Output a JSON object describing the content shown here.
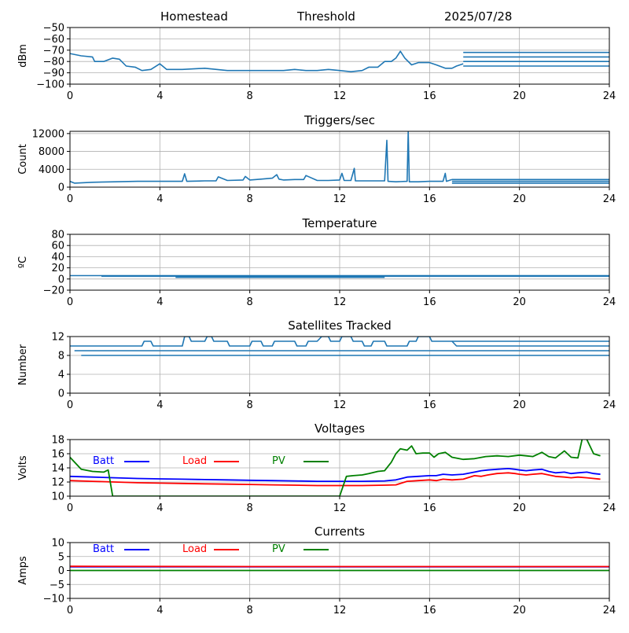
{
  "header": {
    "station": "Homestead",
    "mode": "Threshold",
    "date": "2025/07/28"
  },
  "colors": {
    "series": "#1f77b4",
    "batt": "#0000ff",
    "load": "#ff0000",
    "pv": "#008000",
    "grid": "#b0b0b0"
  },
  "chart_data": [
    {
      "type": "line",
      "title": "",
      "ylabel": "dBm",
      "xlim": [
        0,
        24
      ],
      "ylim": [
        -100,
        -50
      ],
      "xticks": [
        0,
        4,
        8,
        12,
        16,
        20,
        24
      ],
      "yticks": [
        -100,
        -90,
        -80,
        -70,
        -60,
        -50
      ],
      "grid": true,
      "series": [
        {
          "x": [
            0,
            0.5,
            1,
            1.1,
            1.5,
            1.9,
            2.2,
            2.5,
            2.9,
            3.2,
            3.6,
            4,
            4.3,
            5,
            6,
            7,
            8,
            8.5,
            9,
            9.5,
            10,
            10.5,
            11,
            11.5,
            12,
            12.5,
            13,
            13.3,
            13.7,
            14,
            14.3,
            14.5,
            14.7,
            14.9,
            15.2,
            15.5,
            16,
            16.3,
            16.7,
            17,
            17.2,
            17.5
          ],
          "y": [
            -73,
            -75,
            -76,
            -80,
            -80,
            -77,
            -78,
            -84,
            -85,
            -88,
            -87,
            -82,
            -87,
            -87,
            -86,
            -88,
            -88,
            -88,
            -88,
            -88,
            -87,
            -88,
            -88,
            -87,
            -88,
            -89,
            -88,
            -85,
            -85,
            -80,
            -80,
            -77,
            -71,
            -77,
            -83,
            -81,
            -81,
            -83,
            -86,
            -86,
            -84,
            -82
          ]
        },
        {
          "x": [
            17.5,
            24
          ],
          "y": [
            -72,
            -72
          ]
        },
        {
          "x": [
            17.5,
            24
          ],
          "y": [
            -76,
            -76
          ]
        },
        {
          "x": [
            17.5,
            24
          ],
          "y": [
            -80,
            -80
          ]
        },
        {
          "x": [
            17.5,
            24
          ],
          "y": [
            -84,
            -84
          ]
        }
      ]
    },
    {
      "type": "line",
      "title": "Triggers/sec",
      "ylabel": "Count",
      "xlim": [
        0,
        24
      ],
      "ylim": [
        0,
        12500
      ],
      "xticks": [
        0,
        4,
        8,
        12,
        16,
        20,
        24
      ],
      "yticks": [
        0,
        4000,
        8000,
        12000
      ],
      "grid": true,
      "series": [
        {
          "x": [
            0,
            0.2,
            1,
            2,
            3,
            4,
            5,
            5.1,
            5.2,
            6,
            6.5,
            6.6,
            7,
            7.7,
            7.8,
            8,
            8.5,
            9,
            9.2,
            9.3,
            9.5,
            10,
            10.4,
            10.5,
            11,
            11.5,
            12,
            12.1,
            12.2,
            12.5,
            12.65,
            12.7,
            13,
            13.5,
            14,
            14.1,
            14.15,
            14.5,
            15,
            15.05,
            15.1,
            15.5,
            16,
            16.6,
            16.7,
            16.75,
            17
          ],
          "y": [
            1300,
            900,
            1100,
            1200,
            1300,
            1300,
            1300,
            3000,
            1300,
            1400,
            1400,
            2300,
            1500,
            1600,
            2400,
            1600,
            1800,
            2000,
            2800,
            1800,
            1600,
            1700,
            1700,
            2600,
            1500,
            1500,
            1600,
            3100,
            1500,
            1500,
            4200,
            1400,
            1400,
            1400,
            1400,
            10500,
            1300,
            1200,
            1300,
            12600,
            1200,
            1200,
            1300,
            1300,
            3100,
            1300,
            1700
          ]
        },
        {
          "x": [
            17,
            24
          ],
          "y": [
            1700,
            1700
          ]
        },
        {
          "x": [
            17,
            24
          ],
          "y": [
            1300,
            1300
          ]
        },
        {
          "x": [
            17,
            24
          ],
          "y": [
            900,
            900
          ]
        }
      ]
    },
    {
      "type": "line",
      "title": "Temperature",
      "ylabel": "ºC",
      "xlim": [
        0,
        24
      ],
      "ylim": [
        -20,
        80
      ],
      "xticks": [
        0,
        4,
        8,
        12,
        16,
        20,
        24
      ],
      "yticks": [
        -20,
        0,
        20,
        40,
        60,
        80
      ],
      "grid": true,
      "series": [
        {
          "x": [
            0,
            24
          ],
          "y": [
            6,
            6
          ]
        },
        {
          "x": [
            1.4,
            24
          ],
          "y": [
            5,
            5
          ]
        },
        {
          "x": [
            4.7,
            14
          ],
          "y": [
            3,
            3
          ]
        }
      ]
    },
    {
      "type": "line",
      "title": "Satellites Tracked",
      "ylabel": "Number",
      "xlim": [
        0,
        24
      ],
      "ylim": [
        0,
        12
      ],
      "xticks": [
        0,
        4,
        8,
        12,
        16,
        20,
        24
      ],
      "yticks": [
        0,
        4,
        8,
        12
      ],
      "grid": true,
      "series": [
        {
          "x": [
            0,
            3.2,
            3.3,
            3.6,
            3.7,
            5,
            5.1,
            5.3,
            5.4,
            6,
            6.1,
            6.3,
            6.4,
            7,
            7.1,
            8,
            8.1,
            8.5,
            8.6,
            9,
            9.1,
            10,
            10.1,
            10.5,
            10.6,
            11,
            11.2,
            11.5,
            11.6,
            12,
            12.1,
            12.5,
            12.6,
            13,
            13.1,
            13.4,
            13.5,
            14,
            14.1,
            15,
            15.1,
            15.4,
            15.5,
            16,
            16.1,
            17,
            17.2,
            24
          ],
          "y": [
            10,
            10,
            11,
            11,
            10,
            10,
            12,
            12,
            11,
            11,
            12,
            12,
            11,
            11,
            10,
            10,
            11,
            11,
            10,
            10,
            11,
            11,
            10,
            10,
            11,
            11,
            12,
            12,
            11,
            11,
            12,
            12,
            11,
            11,
            10,
            10,
            11,
            11,
            10,
            10,
            11,
            11,
            12,
            12,
            11,
            11,
            10,
            10
          ]
        },
        {
          "x": [
            0.2,
            24
          ],
          "y": [
            9,
            9
          ]
        },
        {
          "x": [
            0.5,
            24
          ],
          "y": [
            8,
            8
          ]
        },
        {
          "x": [
            17,
            24
          ],
          "y": [
            11,
            11
          ]
        }
      ]
    },
    {
      "type": "line",
      "title": "Voltages",
      "ylabel": "Volts",
      "xlim": [
        0,
        24
      ],
      "ylim": [
        10,
        18
      ],
      "xticks": [
        0,
        4,
        8,
        12,
        16,
        20,
        24
      ],
      "yticks": [
        10,
        12,
        14,
        16,
        18
      ],
      "grid": true,
      "legend": "top-left",
      "series": [
        {
          "name": "Batt",
          "color": "#0000ff",
          "x": [
            0,
            1,
            2,
            3,
            4,
            5,
            6,
            7,
            8,
            9,
            10,
            11,
            12,
            13,
            14,
            14.5,
            15,
            15.5,
            16,
            16.3,
            16.6,
            17,
            17.5,
            18,
            18.3,
            18.6,
            19,
            19.5,
            19.8,
            20,
            20.3,
            20.6,
            21,
            21.3,
            21.6,
            22,
            22.3,
            22.6,
            23,
            23.3,
            23.6
          ],
          "y": [
            12.8,
            12.7,
            12.6,
            12.5,
            12.45,
            12.4,
            12.35,
            12.3,
            12.25,
            12.2,
            12.15,
            12.1,
            12.1,
            12.1,
            12.15,
            12.3,
            12.7,
            12.8,
            12.9,
            12.9,
            13.1,
            13.0,
            13.1,
            13.4,
            13.6,
            13.7,
            13.8,
            13.9,
            13.8,
            13.7,
            13.6,
            13.7,
            13.8,
            13.5,
            13.3,
            13.4,
            13.2,
            13.3,
            13.4,
            13.2,
            13.1
          ]
        },
        {
          "name": "Load",
          "color": "#ff0000",
          "x": [
            0,
            1,
            2,
            3,
            4,
            5,
            6,
            7,
            8,
            9,
            10,
            11,
            12,
            13,
            14,
            14.5,
            15,
            15.5,
            16,
            16.3,
            16.6,
            17,
            17.5,
            18,
            18.3,
            18.6,
            19,
            19.5,
            19.8,
            20,
            20.3,
            20.6,
            21,
            21.3,
            21.6,
            22,
            22.3,
            22.6,
            23,
            23.3,
            23.6
          ],
          "y": [
            12.2,
            12.1,
            12.0,
            11.9,
            11.85,
            11.8,
            11.75,
            11.7,
            11.65,
            11.6,
            11.55,
            11.5,
            11.5,
            11.5,
            11.55,
            11.6,
            12.1,
            12.2,
            12.3,
            12.2,
            12.4,
            12.3,
            12.4,
            12.9,
            12.8,
            13.0,
            13.2,
            13.3,
            13.2,
            13.1,
            13.0,
            13.1,
            13.2,
            13.0,
            12.8,
            12.7,
            12.6,
            12.7,
            12.6,
            12.5,
            12.4
          ]
        },
        {
          "name": "PV",
          "color": "#008000",
          "x": [
            0,
            0.5,
            1,
            1.5,
            1.7,
            1.9,
            12,
            12.3,
            12.6,
            13,
            13.3,
            13.7,
            14,
            14.3,
            14.5,
            14.7,
            15,
            15.2,
            15.4,
            15.7,
            16,
            16.2,
            16.4,
            16.7,
            17,
            17.5,
            18,
            18.5,
            19,
            19.5,
            20,
            20.3,
            20.6,
            21,
            21.3,
            21.6,
            22,
            22.3,
            22.6,
            22.8,
            23,
            23.3,
            23.6
          ],
          "y": [
            15.5,
            13.8,
            13.5,
            13.4,
            13.7,
            10,
            10,
            12.8,
            12.9,
            13.0,
            13.2,
            13.5,
            13.6,
            14.8,
            16.0,
            16.7,
            16.5,
            17.1,
            16.0,
            16.1,
            16.1,
            15.5,
            16.0,
            16.2,
            15.5,
            15.2,
            15.3,
            15.6,
            15.7,
            15.6,
            15.8,
            15.7,
            15.6,
            16.2,
            15.6,
            15.4,
            16.4,
            15.5,
            15.4,
            18.2,
            18.0,
            16.0,
            15.7
          ]
        }
      ]
    },
    {
      "type": "line",
      "title": "Currents",
      "ylabel": "Amps",
      "xlim": [
        0,
        24
      ],
      "ylim": [
        -10,
        10
      ],
      "xticks": [
        0,
        4,
        8,
        12,
        16,
        20,
        24
      ],
      "yticks": [
        -10,
        -5,
        0,
        5,
        10
      ],
      "grid": true,
      "legend": "top-left",
      "series": [
        {
          "name": "Batt",
          "color": "#0000ff",
          "x": [
            0,
            24
          ],
          "y": [
            1.3,
            1.3
          ]
        },
        {
          "name": "Load",
          "color": "#ff0000",
          "x": [
            0,
            8,
            16,
            24
          ],
          "y": [
            1.5,
            1.4,
            1.4,
            1.4
          ]
        },
        {
          "name": "PV",
          "color": "#008000",
          "x": [
            0,
            24
          ],
          "y": [
            0,
            0
          ]
        }
      ]
    }
  ]
}
